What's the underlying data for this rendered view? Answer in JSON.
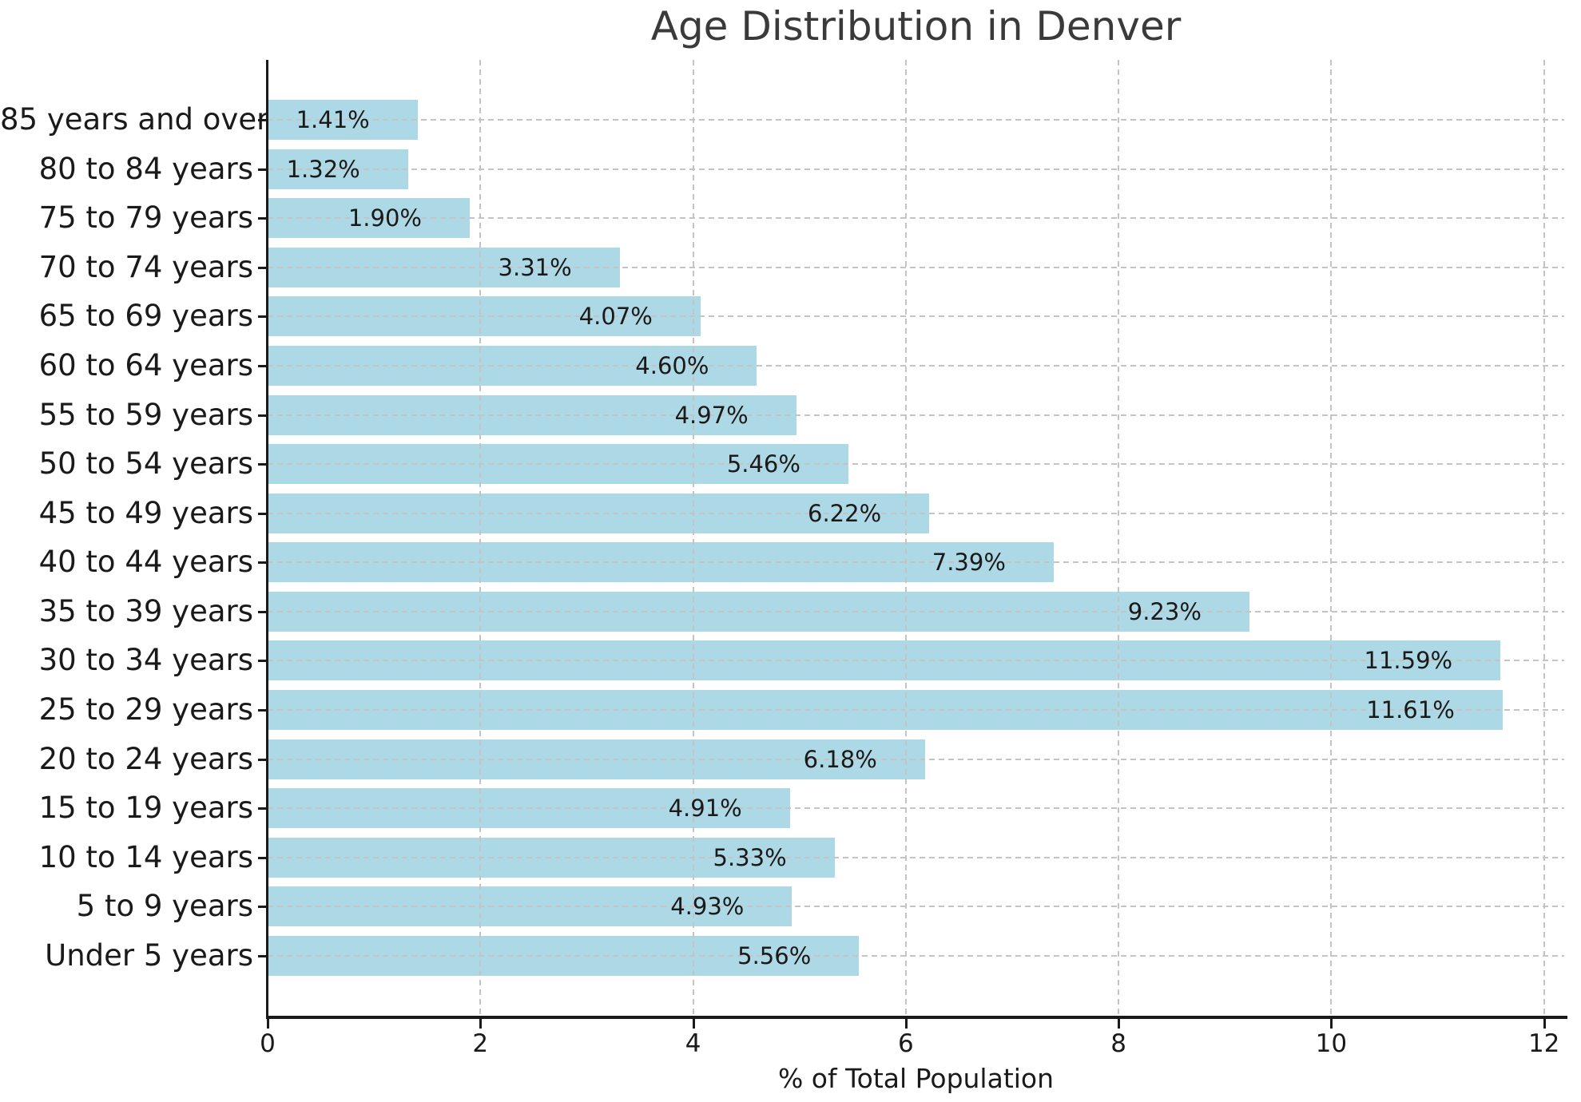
{
  "chart_data": {
    "type": "bar",
    "orientation": "horizontal",
    "title": "Age Distribution in Denver",
    "xlabel": "% of Total Population",
    "ylabel": "",
    "categories": [
      "85 years and over",
      "80 to 84 years",
      "75 to 79 years",
      "70 to 74 years",
      "65 to 69 years",
      "60 to 64 years",
      "55 to 59 years",
      "50 to 54 years",
      "45 to 49 years",
      "40 to 44 years",
      "35 to 39 years",
      "30 to 34 years",
      "25 to 29 years",
      "20 to 24 years",
      "15 to 19 years",
      "10 to 14 years",
      "5 to 9 years",
      "Under 5 years"
    ],
    "values": [
      1.41,
      1.32,
      1.9,
      3.31,
      4.07,
      4.6,
      4.97,
      5.46,
      6.22,
      7.39,
      9.23,
      11.59,
      11.61,
      6.18,
      4.91,
      5.33,
      4.93,
      5.56
    ],
    "value_labels": [
      "1.41%",
      "1.32%",
      "1.90%",
      "3.31%",
      "4.07%",
      "4.60%",
      "4.97%",
      "5.46%",
      "6.22%",
      "7.39%",
      "9.23%",
      "11.59%",
      "11.61%",
      "6.18%",
      "4.91%",
      "5.33%",
      "4.93%",
      "5.56%"
    ],
    "xticks": [
      0,
      2,
      4,
      6,
      8,
      10,
      12
    ],
    "xtick_labels": [
      "0",
      "2",
      "4",
      "6",
      "8",
      "10",
      "12"
    ],
    "xlim": [
      0,
      12.19
    ],
    "grid": "dashed",
    "legend": "none",
    "colors": {
      "bar": "#ADD8E6",
      "grid": "#c4c4c4",
      "spine": "#1a1a1a",
      "text": "#1a1a1a",
      "title": "#3a3a3a"
    }
  }
}
